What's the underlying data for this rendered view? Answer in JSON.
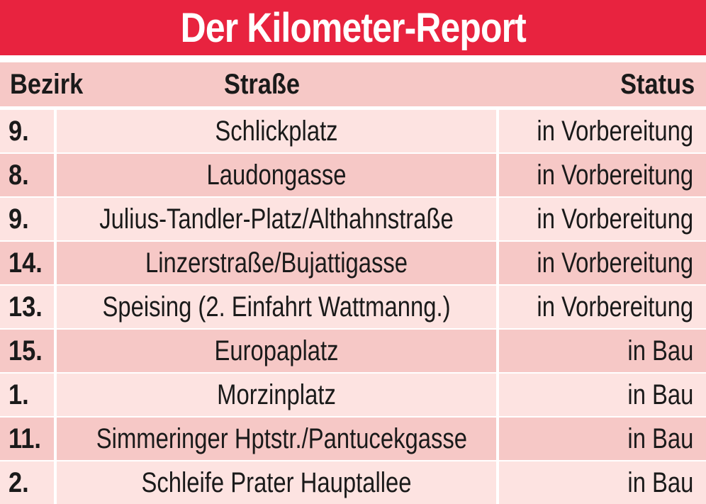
{
  "title": "Der Kilometer-Report",
  "columns": {
    "bezirk": "Bezirk",
    "strasse": "Straße",
    "status": "Status"
  },
  "rows": [
    {
      "bezirk": "9.",
      "strasse": "Schlickplatz",
      "status": "in Vorbereitung"
    },
    {
      "bezirk": "8.",
      "strasse": "Laudongasse",
      "status": "in Vorbereitung"
    },
    {
      "bezirk": "9.",
      "strasse": "Julius-Tandler-Platz/Althahnstraße",
      "status": "in Vorbereitung"
    },
    {
      "bezirk": "14.",
      "strasse": "Linzerstraße/Bujattigasse",
      "status": "in Vorbereitung"
    },
    {
      "bezirk": "13.",
      "strasse": "Speising (2. Einfahrt Wattmanng.)",
      "status": "in Vorbereitung"
    },
    {
      "bezirk": "15.",
      "strasse": "Europaplatz",
      "status": "in Bau"
    },
    {
      "bezirk": "1.",
      "strasse": "Morzinplatz",
      "status": "in Bau"
    },
    {
      "bezirk": "11.",
      "strasse": "Simmeringer Hptstr./Pantucekgasse",
      "status": "in Bau"
    },
    {
      "bezirk": "2.",
      "strasse": "Schleife Prater Hauptallee",
      "status": "in Bau"
    }
  ],
  "colors": {
    "title_bar": "#e8233f",
    "row_dark": "#f6c8c6",
    "row_light": "#fde3e1",
    "text": "#1a1a1a"
  }
}
